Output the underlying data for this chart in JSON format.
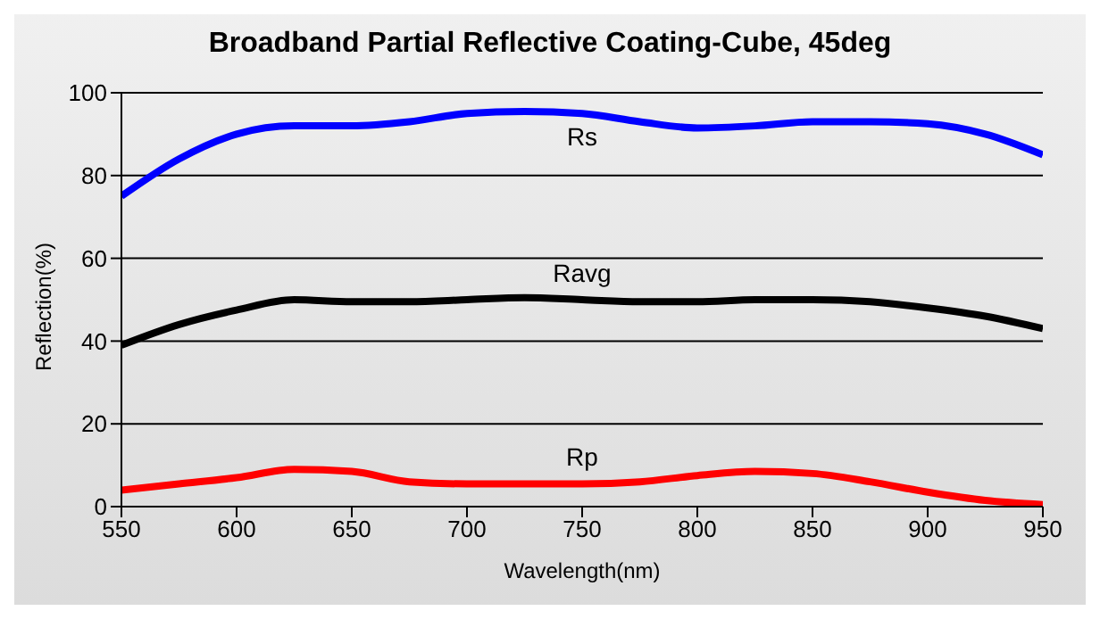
{
  "chart_data": {
    "type": "line",
    "title": "Broadband Partial Reflective Coating-Cube, 45deg",
    "xlabel": "Wavelength(nm)",
    "ylabel": "Reflection(%)",
    "x": [
      550,
      575,
      600,
      625,
      650,
      675,
      700,
      725,
      750,
      775,
      800,
      825,
      850,
      875,
      900,
      925,
      950
    ],
    "series": [
      {
        "name": "Rs",
        "color": "#0000ff",
        "values": [
          75,
          84,
          90,
          92,
          92,
          93,
          95,
          95.5,
          95,
          93,
          91.5,
          92,
          93,
          93,
          92.5,
          90,
          85
        ]
      },
      {
        "name": "Ravg",
        "color": "#000000",
        "values": [
          39,
          44,
          47.5,
          50,
          49.5,
          49.5,
          50,
          50.5,
          50,
          49.5,
          49.5,
          50,
          50,
          49.5,
          48,
          46,
          43
        ]
      },
      {
        "name": "Rp",
        "color": "#ff0000",
        "values": [
          4,
          5.5,
          7,
          9,
          8.5,
          6,
          5.5,
          5.5,
          5.5,
          6,
          7.5,
          8.5,
          8,
          6,
          3.5,
          1.5,
          0.5
        ]
      }
    ],
    "xlim": [
      550,
      950
    ],
    "xticks": [
      550,
      600,
      650,
      700,
      750,
      800,
      850,
      900,
      950
    ],
    "ylim": [
      0,
      100
    ],
    "yticks": [
      0,
      20,
      40,
      60,
      80,
      100
    ],
    "grid": "y",
    "marker": "none",
    "line_style": "solid"
  }
}
